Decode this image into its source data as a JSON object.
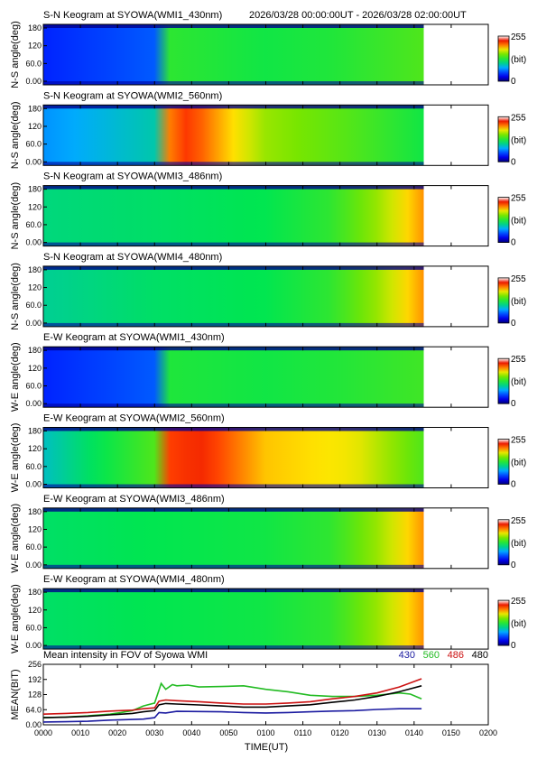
{
  "header": {
    "datetime_range": "2026/03/28 00:00:00UT - 2026/03/28 02:00:00UT"
  },
  "colorbar": {
    "max_label": "255",
    "unit_label": "(bit)",
    "min_label": "0"
  },
  "chart_data": [
    {
      "type": "heatmap",
      "title": "S-N Keogram at SYOWA(WMI1_430nm)",
      "ylabel": "N-S angle(deg)",
      "y_ticks": [
        "180",
        "120",
        "60.0",
        "0.00"
      ],
      "ylim": [
        0,
        180
      ],
      "zlim": [
        0,
        255
      ],
      "data_end_hour": 1.71,
      "intensity_profile": {
        "hours": [
          0,
          0.5,
          0.53,
          1.0,
          1.3,
          1.71
        ],
        "values": [
          40,
          55,
          130,
          120,
          125,
          140
        ]
      }
    },
    {
      "type": "heatmap",
      "title": "S-N Keogram at SYOWA(WMI2_560nm)",
      "ylabel": "N-S angle(deg)",
      "y_ticks": [
        "180",
        "120",
        "60.0",
        "0.00"
      ],
      "ylim": [
        0,
        180
      ],
      "zlim": [
        0,
        255
      ],
      "data_end_hour": 1.71,
      "intensity_profile": {
        "hours": [
          0,
          0.5,
          0.55,
          0.65,
          1.0,
          1.4,
          1.71
        ],
        "values": [
          70,
          95,
          200,
          220,
          160,
          140,
          120
        ]
      }
    },
    {
      "type": "heatmap",
      "title": "S-N Keogram at SYOWA(WMI3_486nm)",
      "ylabel": "N-S angle(deg)",
      "y_ticks": [
        "180",
        "120",
        "60.0",
        "0.00"
      ],
      "ylim": [
        0,
        180
      ],
      "zlim": [
        0,
        255
      ],
      "data_end_hour": 1.71,
      "intensity_profile": {
        "hours": [
          0,
          0.5,
          1.0,
          1.3,
          1.5,
          1.71
        ],
        "values": [
          105,
          110,
          115,
          130,
          160,
          200
        ]
      }
    },
    {
      "type": "heatmap",
      "title": "S-N Keogram at SYOWA(WMI4_480nm)",
      "ylabel": "N-S angle(deg)",
      "y_ticks": [
        "180",
        "120",
        "60.0",
        "0.00"
      ],
      "ylim": [
        0,
        180
      ],
      "zlim": [
        0,
        255
      ],
      "data_end_hour": 1.71,
      "intensity_profile": {
        "hours": [
          0,
          0.5,
          1.0,
          1.3,
          1.5,
          1.71
        ],
        "values": [
          100,
          110,
          115,
          130,
          160,
          200
        ]
      }
    },
    {
      "type": "heatmap",
      "title": "E-W Keogram at SYOWA(WMI1_430nm)",
      "ylabel": "W-E angle(deg)",
      "y_ticks": [
        "180",
        "120",
        "60.0",
        "0.00"
      ],
      "ylim": [
        0,
        180
      ],
      "zlim": [
        0,
        255
      ],
      "data_end_hour": 1.71,
      "intensity_profile": {
        "hours": [
          0,
          0.5,
          0.53,
          1.0,
          1.3,
          1.71
        ],
        "values": [
          40,
          55,
          125,
          120,
          125,
          135
        ]
      }
    },
    {
      "type": "heatmap",
      "title": "E-W Keogram at SYOWA(WMI2_560nm)",
      "ylabel": "W-E angle(deg)",
      "y_ticks": [
        "180",
        "120",
        "60.0",
        "0.00"
      ],
      "ylim": [
        0,
        180
      ],
      "zlim": [
        0,
        255
      ],
      "data_end_hour": 1.71,
      "intensity_profile": {
        "hours": [
          0,
          0.5,
          0.55,
          0.7,
          1.0,
          1.4,
          1.71
        ],
        "values": [
          90,
          140,
          215,
          225,
          190,
          180,
          140
        ]
      }
    },
    {
      "type": "heatmap",
      "title": "E-W Keogram at SYOWA(WMI3_486nm)",
      "ylabel": "W-E angle(deg)",
      "y_ticks": [
        "180",
        "120",
        "60.0",
        "0.00"
      ],
      "ylim": [
        0,
        180
      ],
      "zlim": [
        0,
        255
      ],
      "data_end_hour": 1.71,
      "intensity_profile": {
        "hours": [
          0,
          0.5,
          1.0,
          1.3,
          1.5,
          1.71
        ],
        "values": [
          110,
          115,
          120,
          130,
          160,
          200
        ]
      }
    },
    {
      "type": "heatmap",
      "title": "E-W Keogram at SYOWA(WMI4_480nm)",
      "ylabel": "W-E angle(deg)",
      "y_ticks": [
        "180",
        "120",
        "60.0",
        "0.00"
      ],
      "ylim": [
        0,
        180
      ],
      "zlim": [
        0,
        255
      ],
      "data_end_hour": 1.71,
      "intensity_profile": {
        "hours": [
          0,
          0.5,
          1.0,
          1.3,
          1.5,
          1.71
        ],
        "values": [
          110,
          115,
          120,
          130,
          160,
          200
        ]
      }
    },
    {
      "type": "line",
      "title": "Mean intensity in FOV of Syowa WMI",
      "ylabel": "MEAN(BIT)",
      "xlabel": "TIME(UT)",
      "ylim": [
        0,
        256
      ],
      "y_ticks": [
        256,
        192,
        128,
        64,
        0
      ],
      "y_tick_labels": [
        "256",
        "192",
        "128",
        "64.0",
        "0.00"
      ],
      "xlim": [
        0,
        2
      ],
      "x_tick_labels": [
        "0000",
        "0010",
        "0020",
        "0030",
        "0040",
        "0050",
        "0100",
        "0110",
        "0120",
        "0130",
        "0140",
        "0150",
        "0200"
      ],
      "series": [
        {
          "name": "430",
          "color": "#1a1aa0",
          "x": [
            0,
            0.1,
            0.2,
            0.3,
            0.45,
            0.5,
            0.52,
            0.55,
            0.6,
            0.7,
            0.8,
            0.9,
            1.0,
            1.1,
            1.2,
            1.3,
            1.4,
            1.5,
            1.6,
            1.7
          ],
          "y": [
            12,
            13,
            15,
            20,
            24,
            30,
            52,
            50,
            57,
            56,
            55,
            52,
            50,
            52,
            55,
            58,
            60,
            65,
            68,
            68
          ]
        },
        {
          "name": "560",
          "color": "#22bb22",
          "x": [
            0,
            0.1,
            0.2,
            0.3,
            0.35,
            0.4,
            0.45,
            0.5,
            0.53,
            0.55,
            0.58,
            0.6,
            0.65,
            0.7,
            0.8,
            0.9,
            1.0,
            1.1,
            1.2,
            1.3,
            1.4,
            1.5,
            1.6,
            1.65,
            1.7
          ],
          "y": [
            30,
            33,
            38,
            45,
            52,
            60,
            80,
            92,
            175,
            150,
            170,
            165,
            168,
            160,
            162,
            165,
            150,
            140,
            125,
            120,
            120,
            125,
            135,
            130,
            110
          ]
        },
        {
          "name": "486",
          "color": "#cc1111",
          "x": [
            0,
            0.1,
            0.2,
            0.3,
            0.4,
            0.45,
            0.5,
            0.52,
            0.55,
            0.6,
            0.7,
            0.8,
            0.9,
            1.0,
            1.1,
            1.2,
            1.3,
            1.4,
            1.5,
            1.6,
            1.7
          ],
          "y": [
            45,
            48,
            52,
            58,
            62,
            68,
            72,
            100,
            105,
            102,
            98,
            92,
            88,
            88,
            92,
            98,
            110,
            120,
            135,
            160,
            195
          ]
        },
        {
          "name": "480",
          "color": "#000000",
          "x": [
            0,
            0.1,
            0.2,
            0.3,
            0.4,
            0.45,
            0.5,
            0.52,
            0.55,
            0.6,
            0.7,
            0.8,
            0.9,
            1.0,
            1.1,
            1.2,
            1.3,
            1.4,
            1.5,
            1.6,
            1.7
          ],
          "y": [
            30,
            32,
            36,
            42,
            48,
            55,
            60,
            85,
            90,
            88,
            84,
            80,
            75,
            75,
            80,
            85,
            95,
            105,
            120,
            140,
            165
          ]
        }
      ]
    }
  ]
}
